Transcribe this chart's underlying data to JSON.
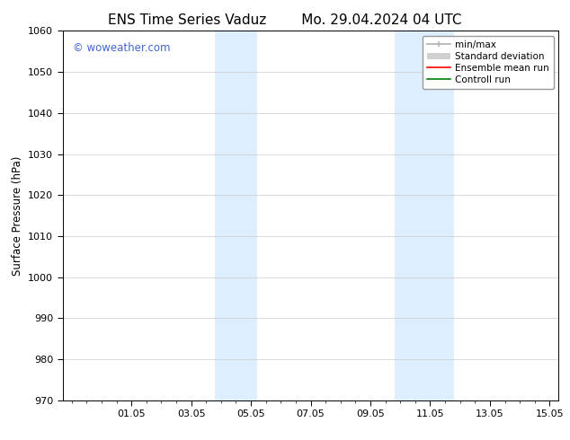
{
  "title_left": "ENS Time Series Vaduz",
  "title_right": "Mo. 29.04.2024 04 UTC",
  "ylabel": "Surface Pressure (hPa)",
  "ylim": [
    970,
    1060
  ],
  "yticks": [
    970,
    980,
    990,
    1000,
    1010,
    1020,
    1030,
    1040,
    1050,
    1060
  ],
  "xlim": [
    -0.3,
    16.3
  ],
  "xtick_labels": [
    "01.05",
    "03.05",
    "05.05",
    "07.05",
    "09.05",
    "11.05",
    "13.05",
    "15.05"
  ],
  "xtick_positions": [
    2,
    4,
    6,
    8,
    10,
    12,
    14,
    16
  ],
  "shaded_bands": [
    {
      "xstart": 4.8,
      "xend": 6.2
    },
    {
      "xstart": 10.8,
      "xend": 12.8
    }
  ],
  "shaded_color": "#ddeeff",
  "watermark_text": "© woweather.com",
  "watermark_color": "#4466cc",
  "legend_entries": [
    {
      "label": "min/max",
      "color": "#b0b0b0",
      "lw": 1.2
    },
    {
      "label": "Standard deviation",
      "color": "#d0d0d0",
      "lw": 5
    },
    {
      "label": "Ensemble mean run",
      "color": "red",
      "lw": 1.2
    },
    {
      "label": "Controll run",
      "color": "green",
      "lw": 1.2
    }
  ],
  "bg_color": "#ffffff",
  "grid_color": "#cccccc",
  "title_fontsize": 11,
  "label_fontsize": 8.5,
  "tick_fontsize": 8,
  "legend_fontsize": 7.5
}
